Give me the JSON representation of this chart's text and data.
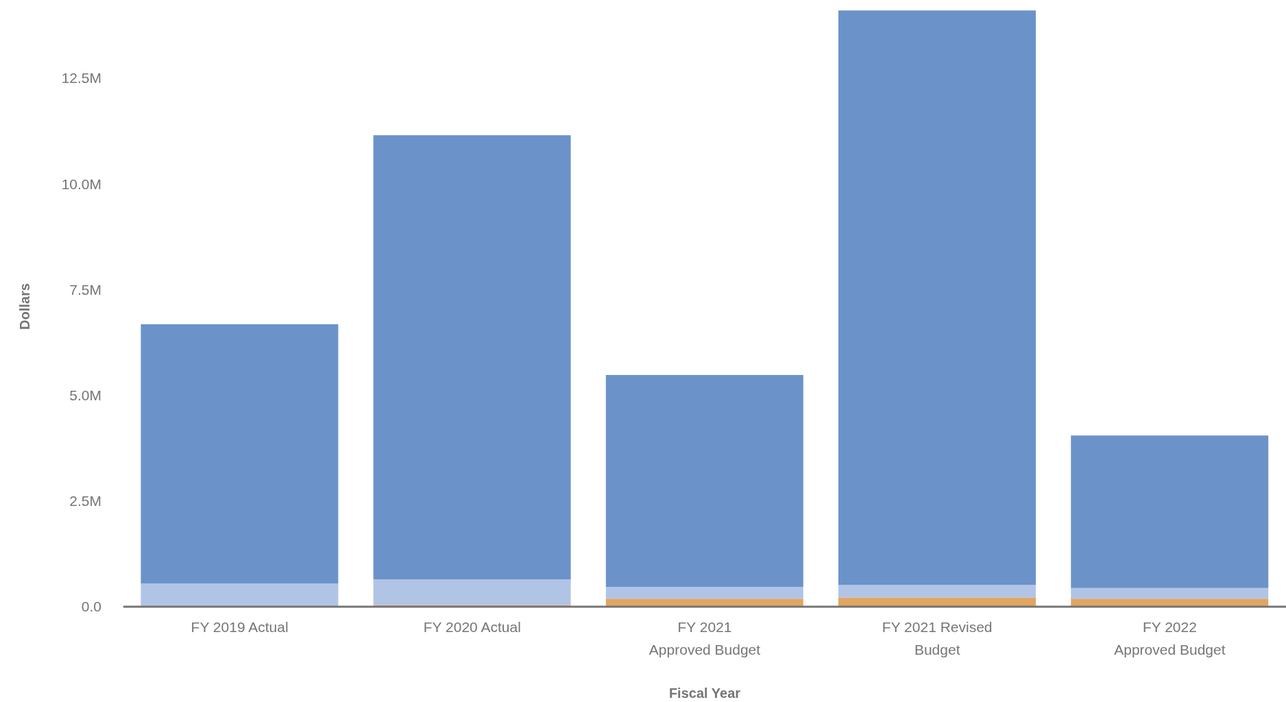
{
  "chart_data": {
    "type": "bar",
    "stacked": true,
    "xlabel": "Fiscal Year",
    "ylabel": "Dollars",
    "categories": [
      "FY 2019 Actual",
      "FY 2020 Actual",
      "FY 2021 Approved Budget",
      "FY 2021 Revised Budget",
      "FY 2022 Approved Budget"
    ],
    "series": [
      {
        "color": "#e0a662",
        "values": [
          0,
          40000,
          190000,
          220000,
          190000
        ]
      },
      {
        "color": "#b0c4e6",
        "values": [
          550000,
          610000,
          280000,
          300000,
          250000
        ]
      },
      {
        "color": "#6b93c9",
        "values": [
          6130000,
          10500000,
          5010000,
          13580000,
          3610000
        ]
      }
    ],
    "ylim": [
      0,
      14200000
    ],
    "yticks": [
      {
        "value": 0,
        "label": "0.0"
      },
      {
        "value": 2500000,
        "label": "2.5M"
      },
      {
        "value": 5000000,
        "label": "5.0M"
      },
      {
        "value": 7500000,
        "label": "7.5M"
      },
      {
        "value": 10000000,
        "label": "10.0M"
      },
      {
        "value": 12500000,
        "label": "12.5M"
      }
    ]
  }
}
